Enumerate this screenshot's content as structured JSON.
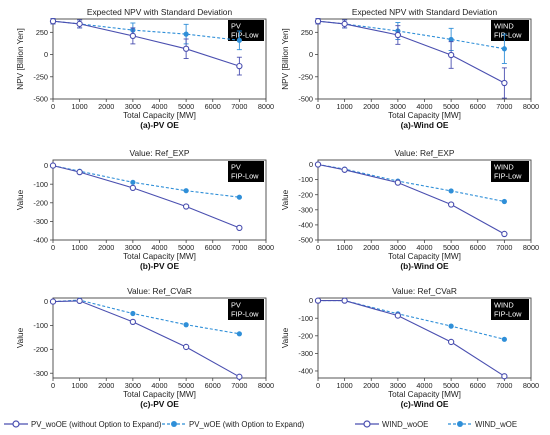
{
  "chart_data": [
    {
      "type": "line",
      "id": "a_pv",
      "title": "Expected NPV with Standard Deviation",
      "tag": [
        "PV",
        "FIP-Low"
      ],
      "caption": "(a)-PV OE",
      "xlabel": "Total Capacity [MW]",
      "ylabel": "NPV [Billion Yen]",
      "xlim": [
        0,
        8000
      ],
      "ylim": [
        -500,
        400
      ],
      "xticks": [
        0,
        1000,
        2000,
        3000,
        4000,
        5000,
        6000,
        7000,
        8000
      ],
      "yticks": [
        -500,
        -250,
        0,
        250
      ],
      "x": [
        0,
        1000,
        3000,
        5000,
        7000
      ],
      "series": [
        {
          "key": "woOE",
          "values": [
            375,
            345,
            210,
            65,
            -130
          ],
          "err": [
            30,
            45,
            90,
            110,
            100
          ]
        },
        {
          "key": "wOE",
          "values": [
            375,
            345,
            275,
            230,
            160
          ],
          "err": [
            30,
            45,
            80,
            110,
            105
          ]
        }
      ]
    },
    {
      "type": "line",
      "id": "a_wind",
      "title": "Expected NPV with Standard Deviation",
      "tag": [
        "WIND",
        "FIP-Low"
      ],
      "caption": "(a)-Wind OE",
      "xlabel": "Total Capacity [MW]",
      "ylabel": "NPV [Billion Yen]",
      "xlim": [
        0,
        8000
      ],
      "ylim": [
        -500,
        400
      ],
      "xticks": [
        0,
        1000,
        2000,
        3000,
        4000,
        5000,
        6000,
        7000,
        8000
      ],
      "yticks": [
        -500,
        -250,
        0,
        250
      ],
      "x": [
        0,
        1000,
        3000,
        5000,
        7000
      ],
      "series": [
        {
          "key": "woOE",
          "values": [
            375,
            345,
            220,
            -5,
            -320
          ],
          "err": [
            30,
            45,
            105,
            150,
            170
          ]
        },
        {
          "key": "wOE",
          "values": [
            375,
            345,
            265,
            170,
            65
          ],
          "err": [
            30,
            45,
            95,
            125,
            165
          ]
        }
      ]
    },
    {
      "type": "line",
      "id": "b_pv",
      "title": "Value: Ref_EXP",
      "tag": [
        "PV",
        "FIP-Low"
      ],
      "caption": "(b)-PV OE",
      "xlabel": "Total Capacity [MW]",
      "ylabel": "Value",
      "xlim": [
        0,
        8000
      ],
      "ylim": [
        -400,
        30
      ],
      "xticks": [
        0,
        1000,
        2000,
        3000,
        4000,
        5000,
        6000,
        7000,
        8000
      ],
      "yticks": [
        -400,
        -300,
        -200,
        -100,
        0
      ],
      "x": [
        0,
        1000,
        3000,
        5000,
        7000
      ],
      "series": [
        {
          "key": "woOE",
          "values": [
            0,
            -35,
            -120,
            -220,
            -335
          ]
        },
        {
          "key": "wOE",
          "values": [
            0,
            -30,
            -90,
            -135,
            -170
          ]
        }
      ]
    },
    {
      "type": "line",
      "id": "b_wind",
      "title": "Value: Ref_EXP",
      "tag": [
        "WIND",
        "FIP-Low"
      ],
      "caption": "(b)-Wind OE",
      "xlabel": "Total Capacity [MW]",
      "ylabel": "Value",
      "xlim": [
        0,
        8000
      ],
      "ylim": [
        -500,
        30
      ],
      "xticks": [
        0,
        1000,
        2000,
        3000,
        4000,
        5000,
        6000,
        7000,
        8000
      ],
      "yticks": [
        -500,
        -400,
        -300,
        -200,
        -100,
        0
      ],
      "x": [
        0,
        1000,
        3000,
        5000,
        7000
      ],
      "series": [
        {
          "key": "woOE",
          "values": [
            0,
            -35,
            -120,
            -265,
            -460
          ]
        },
        {
          "key": "wOE",
          "values": [
            0,
            -30,
            -110,
            -175,
            -245
          ]
        }
      ]
    },
    {
      "type": "line",
      "id": "c_pv",
      "title": "Value: Ref_CVaR",
      "tag": [
        "PV",
        "FIP-Low"
      ],
      "caption": "(c)-PV OE",
      "xlabel": "Total Capacity [MW]",
      "ylabel": "Value",
      "xlim": [
        0,
        8000
      ],
      "ylim": [
        -320,
        15
      ],
      "xticks": [
        0,
        1000,
        2000,
        3000,
        4000,
        5000,
        6000,
        7000,
        8000
      ],
      "yticks": [
        -300,
        -200,
        -100,
        0
      ],
      "x": [
        0,
        1000,
        3000,
        5000,
        7000
      ],
      "series": [
        {
          "key": "woOE",
          "values": [
            0,
            3,
            -85,
            -190,
            -315
          ]
        },
        {
          "key": "wOE",
          "values": [
            0,
            6,
            -50,
            -97,
            -135
          ]
        }
      ]
    },
    {
      "type": "line",
      "id": "c_wind",
      "title": "Value: Ref_CVaR",
      "tag": [
        "WIND",
        "FIP-Low"
      ],
      "caption": "(c)-Wind OE",
      "xlabel": "Total Capacity [MW]",
      "ylabel": "Value",
      "xlim": [
        0,
        8000
      ],
      "ylim": [
        -440,
        15
      ],
      "xticks": [
        0,
        1000,
        2000,
        3000,
        4000,
        5000,
        6000,
        7000,
        8000
      ],
      "yticks": [
        -400,
        -300,
        -200,
        -100,
        0
      ],
      "x": [
        0,
        1000,
        3000,
        5000,
        7000
      ],
      "series": [
        {
          "key": "woOE",
          "values": [
            0,
            0,
            -85,
            -235,
            -430
          ]
        },
        {
          "key": "wOE",
          "values": [
            0,
            0,
            -75,
            -145,
            -220
          ]
        }
      ]
    }
  ],
  "styles": {
    "woOE": {
      "color": "#4a4fb0",
      "marker": "open-circle",
      "line": "solid"
    },
    "wOE": {
      "color": "#2f8fd8",
      "marker": "filled-circle",
      "line": "dashed"
    }
  },
  "legend": {
    "pv_woOE": "PV_woOE (without Option to Expand)",
    "pv_wOE": "PV_wOE (with Option to Expand)",
    "wind_woOE": "WIND_woOE",
    "wind_wOE": "WIND_wOE"
  }
}
